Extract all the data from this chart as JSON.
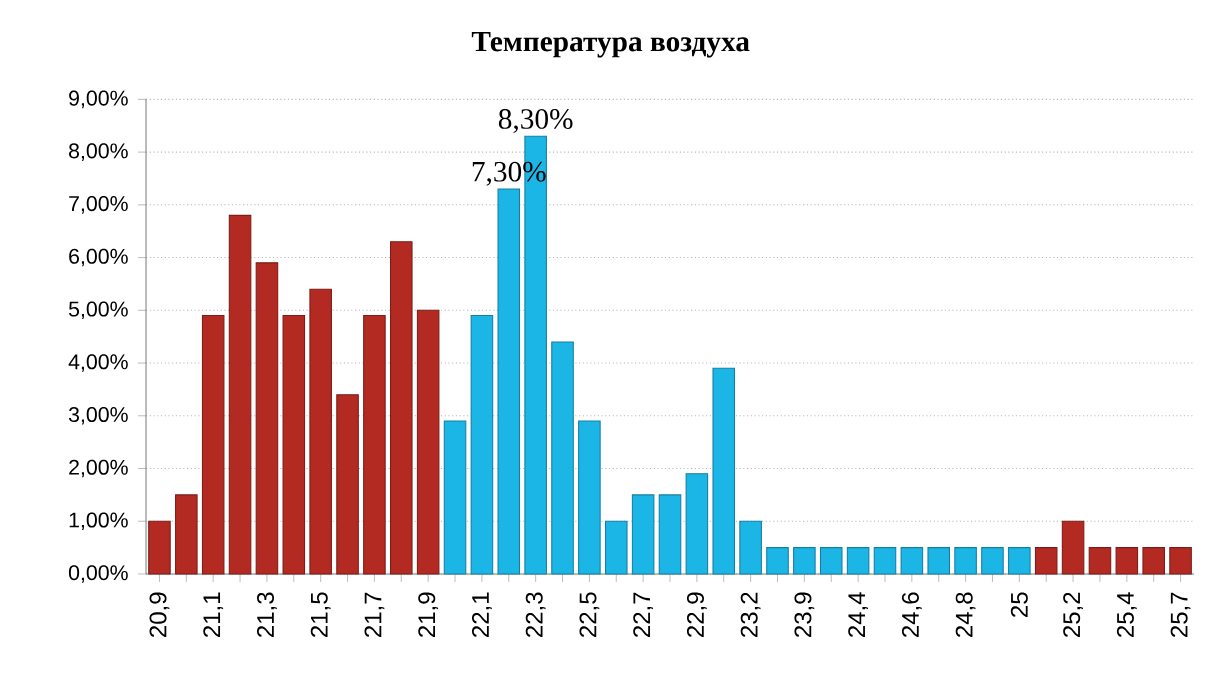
{
  "chart_data": {
    "type": "bar",
    "title": "Температура  воздуха",
    "categories": [
      "20,9",
      null,
      "21,1",
      null,
      "21,3",
      null,
      "21,5",
      null,
      "21,7",
      null,
      "21,9",
      null,
      "22,1",
      null,
      "22,3",
      null,
      "22,5",
      null,
      "22,7",
      null,
      "22,9",
      null,
      "23,2",
      null,
      "23,9",
      null,
      "24,4",
      null,
      "24,6",
      null,
      "24,8",
      null,
      "25",
      null,
      "25,2",
      null,
      "25,4",
      null,
      "25,7"
    ],
    "values": [
      1.0,
      1.5,
      4.9,
      6.8,
      5.9,
      4.9,
      5.4,
      3.4,
      4.9,
      6.3,
      5.0,
      2.9,
      4.9,
      7.3,
      8.3,
      4.4,
      2.9,
      1.0,
      1.5,
      1.5,
      1.9,
      3.9,
      1.0,
      0.5,
      0.5,
      0.5,
      0.5,
      0.5,
      0.5,
      0.5,
      0.5,
      0.5,
      0.5,
      0.5,
      1.0,
      0.5,
      0.5,
      0.5,
      0.5
    ],
    "colors": [
      "#b22a22",
      "#b22a22",
      "#b22a22",
      "#b22a22",
      "#b22a22",
      "#b22a22",
      "#b22a22",
      "#b22a22",
      "#b22a22",
      "#b22a22",
      "#b22a22",
      "#1cb6e6",
      "#1cb6e6",
      "#1cb6e6",
      "#1cb6e6",
      "#1cb6e6",
      "#1cb6e6",
      "#1cb6e6",
      "#1cb6e6",
      "#1cb6e6",
      "#1cb6e6",
      "#1cb6e6",
      "#1cb6e6",
      "#1cb6e6",
      "#1cb6e6",
      "#1cb6e6",
      "#1cb6e6",
      "#1cb6e6",
      "#1cb6e6",
      "#1cb6e6",
      "#1cb6e6",
      "#1cb6e6",
      "#1cb6e6",
      "#b22a22",
      "#b22a22",
      "#b22a22",
      "#b22a22",
      "#b22a22",
      "#b22a22"
    ],
    "value_labels": [
      null,
      null,
      null,
      null,
      null,
      null,
      null,
      null,
      null,
      null,
      null,
      null,
      null,
      "7,30%",
      "8,30%",
      null,
      null,
      null,
      null,
      null,
      null,
      null,
      null,
      null,
      null,
      null,
      null,
      null,
      null,
      null,
      null,
      null,
      null,
      null,
      null,
      null,
      null,
      null,
      null
    ],
    "ylim": [
      0,
      9
    ],
    "yticks": [
      {
        "value": 0,
        "label": "0,00%"
      },
      {
        "value": 1,
        "label": "1,00%"
      },
      {
        "value": 2,
        "label": "2,00%"
      },
      {
        "value": 3,
        "label": "3,00%"
      },
      {
        "value": 4,
        "label": "4,00%"
      },
      {
        "value": 5,
        "label": "5,00%"
      },
      {
        "value": 6,
        "label": "6,00%"
      },
      {
        "value": 7,
        "label": "7,00%"
      },
      {
        "value": 8,
        "label": "8,00%"
      },
      {
        "value": 9,
        "label": "9,00%"
      }
    ],
    "grid": "y"
  }
}
